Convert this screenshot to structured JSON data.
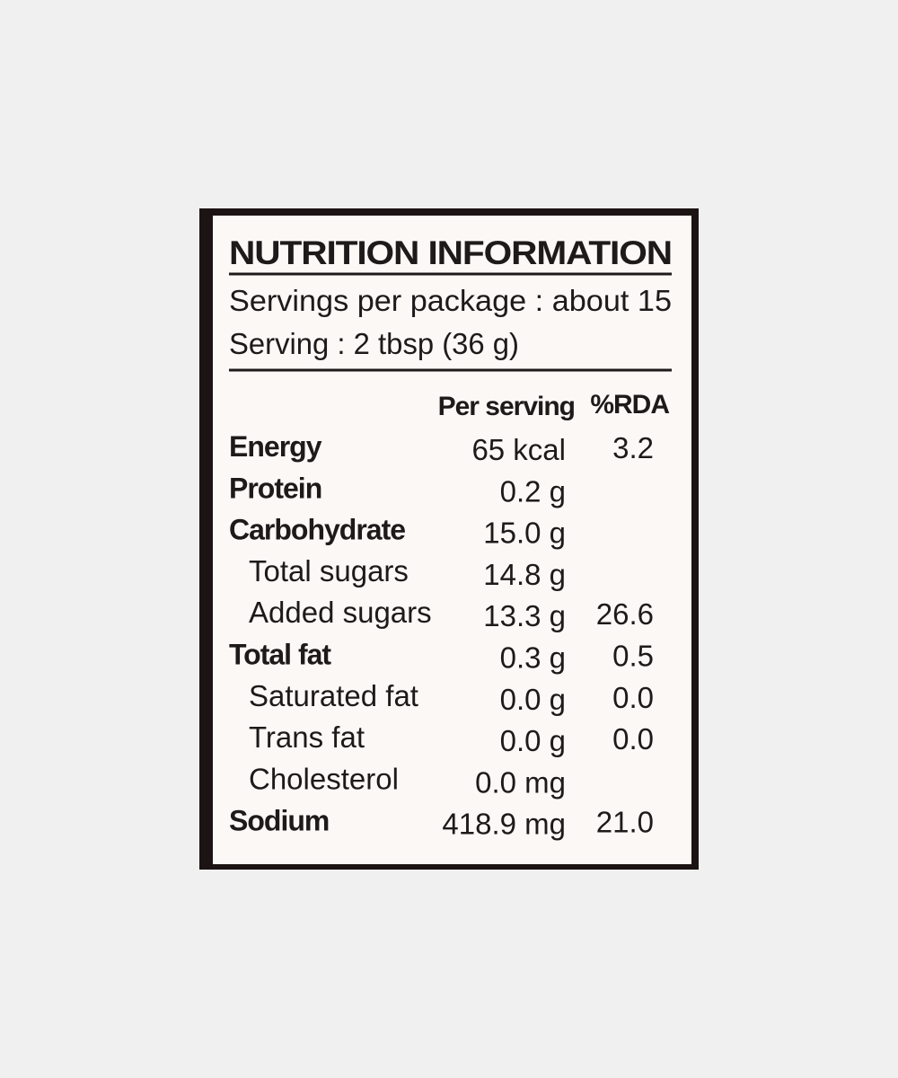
{
  "label": {
    "title": "NUTRITION INFORMATION",
    "servings_per_package": "Servings per package : about  15",
    "serving_size": "Serving : 2 tbsp (36 g)",
    "columns": [
      "Per serving",
      "%RDA"
    ],
    "rows": [
      {
        "name": "Energy",
        "per_serving": "65 kcal",
        "rda": "3.2"
      },
      {
        "name": "Protein",
        "per_serving": "0.2 g"
      },
      {
        "name": "Carbohydrate",
        "per_serving": "15.0 g"
      },
      {
        "name": "Total sugars",
        "per_serving": "14.8 g"
      },
      {
        "name": "Added sugars",
        "per_serving": "13.3 g",
        "rda": "26.6"
      },
      {
        "name": "Total fat",
        "per_serving": "0.3 g",
        "rda": "0.5"
      },
      {
        "name": "Saturated fat",
        "per_serving": "0.0 g",
        "rda": "0.0"
      },
      {
        "name": "Trans fat",
        "per_serving": "0.0 g",
        "rda": "0.0"
      },
      {
        "name": "Cholesterol",
        "per_serving": "0.0 mg"
      },
      {
        "name": "Sodium",
        "per_serving": "418.9 mg",
        "rda": "21.0"
      }
    ]
  }
}
